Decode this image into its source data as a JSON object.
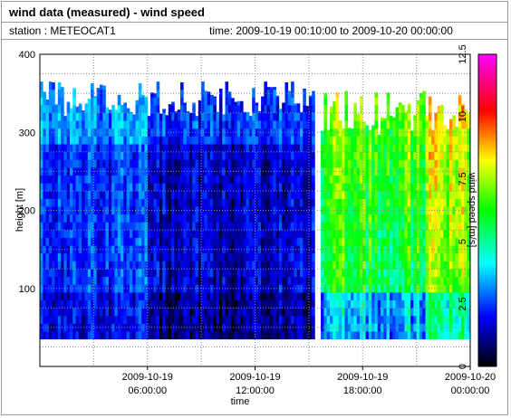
{
  "header": {
    "title": "wind data (measured) - wind speed",
    "station": "station : METEOCAT1",
    "time_range": "time: 2009-10-19 00:10:00 to 2009-10-20 00:00:00"
  },
  "chart_data": {
    "type": "heatmap",
    "title": "wind data (measured) - wind speed",
    "xlabel": "time",
    "ylabel": "height [m]",
    "colorbar_label": "wind speed [m/s]",
    "x_ticks": [
      {
        "line1": "2009-10-19",
        "line2": "06:00:00",
        "hour": 6
      },
      {
        "line1": "2009-10-19",
        "line2": "12:00:00",
        "hour": 12
      },
      {
        "line1": "2009-10-19",
        "line2": "18:00:00",
        "hour": 18
      },
      {
        "line1": "2009-10-20",
        "line2": "00:00:00",
        "hour": 24
      }
    ],
    "xlim_hours": [
      0,
      24
    ],
    "y_ticks": [
      100,
      200,
      300,
      400
    ],
    "ylim": [
      0,
      400
    ],
    "colorbar_ticks": [
      0,
      2.5,
      5,
      7.5,
      10,
      12.5
    ],
    "colorbar_range": [
      0,
      12.5
    ],
    "colormap": [
      "#000000",
      "#0000ff",
      "#00ffff",
      "#00ff00",
      "#ffff00",
      "#ff0000",
      "#ff00ff"
    ],
    "grid": true,
    "gap_hours": [
      15.3,
      15.6
    ],
    "height_range_m": [
      35,
      365
    ],
    "time_resolution_minutes": 10,
    "height_resolution_m": 10,
    "regions": [
      {
        "period": "00:00-06:00",
        "height_m": "35-365",
        "wind_speed_ms": "1.5-3.5"
      },
      {
        "period": "06:00-12:00",
        "height_m": "35-365",
        "wind_speed_ms": "0.5-2.5"
      },
      {
        "period": "12:00-15:20",
        "height_m": "35-365",
        "wind_speed_ms": "1.0-2.5"
      },
      {
        "period": "15:40-24:00",
        "height_m": "35-355",
        "wind_speed_ms": "3.0-10.0"
      }
    ]
  }
}
